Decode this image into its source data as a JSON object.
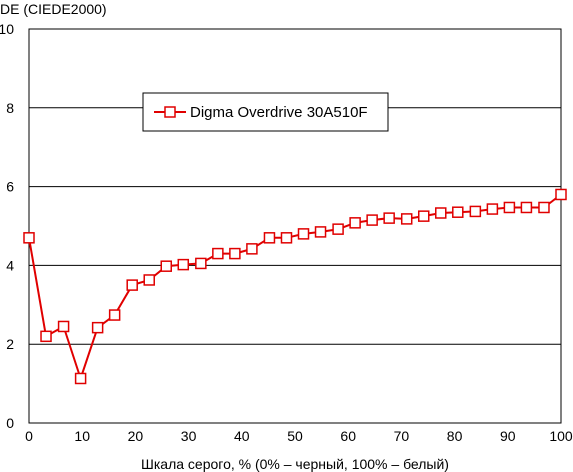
{
  "chart_data": {
    "type": "line",
    "title": "",
    "ylabel": "DE (CIEDE2000)",
    "xlabel": "Шкала серого, % (0% – черный, 100% – белый)",
    "xlim": [
      0,
      100
    ],
    "ylim": [
      0,
      10
    ],
    "xticks": [
      "0",
      "10",
      "20",
      "30",
      "40",
      "50",
      "60",
      "70",
      "80",
      "90",
      "100"
    ],
    "yticks": [
      "0",
      "2",
      "4",
      "6",
      "8",
      "10"
    ],
    "grid": "horizontal",
    "legend_position": "upper-left-inside",
    "colors": {
      "series": "#e00000",
      "grid": "#000000",
      "marker_fill": "#ffffff"
    },
    "series": [
      {
        "name": "Digma Overdrive 30A510F",
        "marker": "square",
        "x": [
          0,
          3.2,
          6.5,
          9.7,
          12.9,
          16.1,
          19.4,
          22.6,
          25.8,
          29.0,
          32.3,
          35.5,
          38.7,
          41.9,
          45.2,
          48.4,
          51.6,
          54.8,
          58.1,
          61.3,
          64.5,
          67.7,
          71.0,
          74.2,
          77.4,
          80.6,
          83.9,
          87.1,
          90.3,
          93.5,
          96.8,
          100
        ],
        "y": [
          4.7,
          2.2,
          2.45,
          1.13,
          2.42,
          2.74,
          3.5,
          3.63,
          3.98,
          4.02,
          4.05,
          4.3,
          4.3,
          4.42,
          4.7,
          4.7,
          4.8,
          4.85,
          4.92,
          5.08,
          5.15,
          5.2,
          5.18,
          5.25,
          5.33,
          5.35,
          5.37,
          5.43,
          5.47,
          5.47,
          5.47,
          5.8
        ]
      }
    ]
  }
}
